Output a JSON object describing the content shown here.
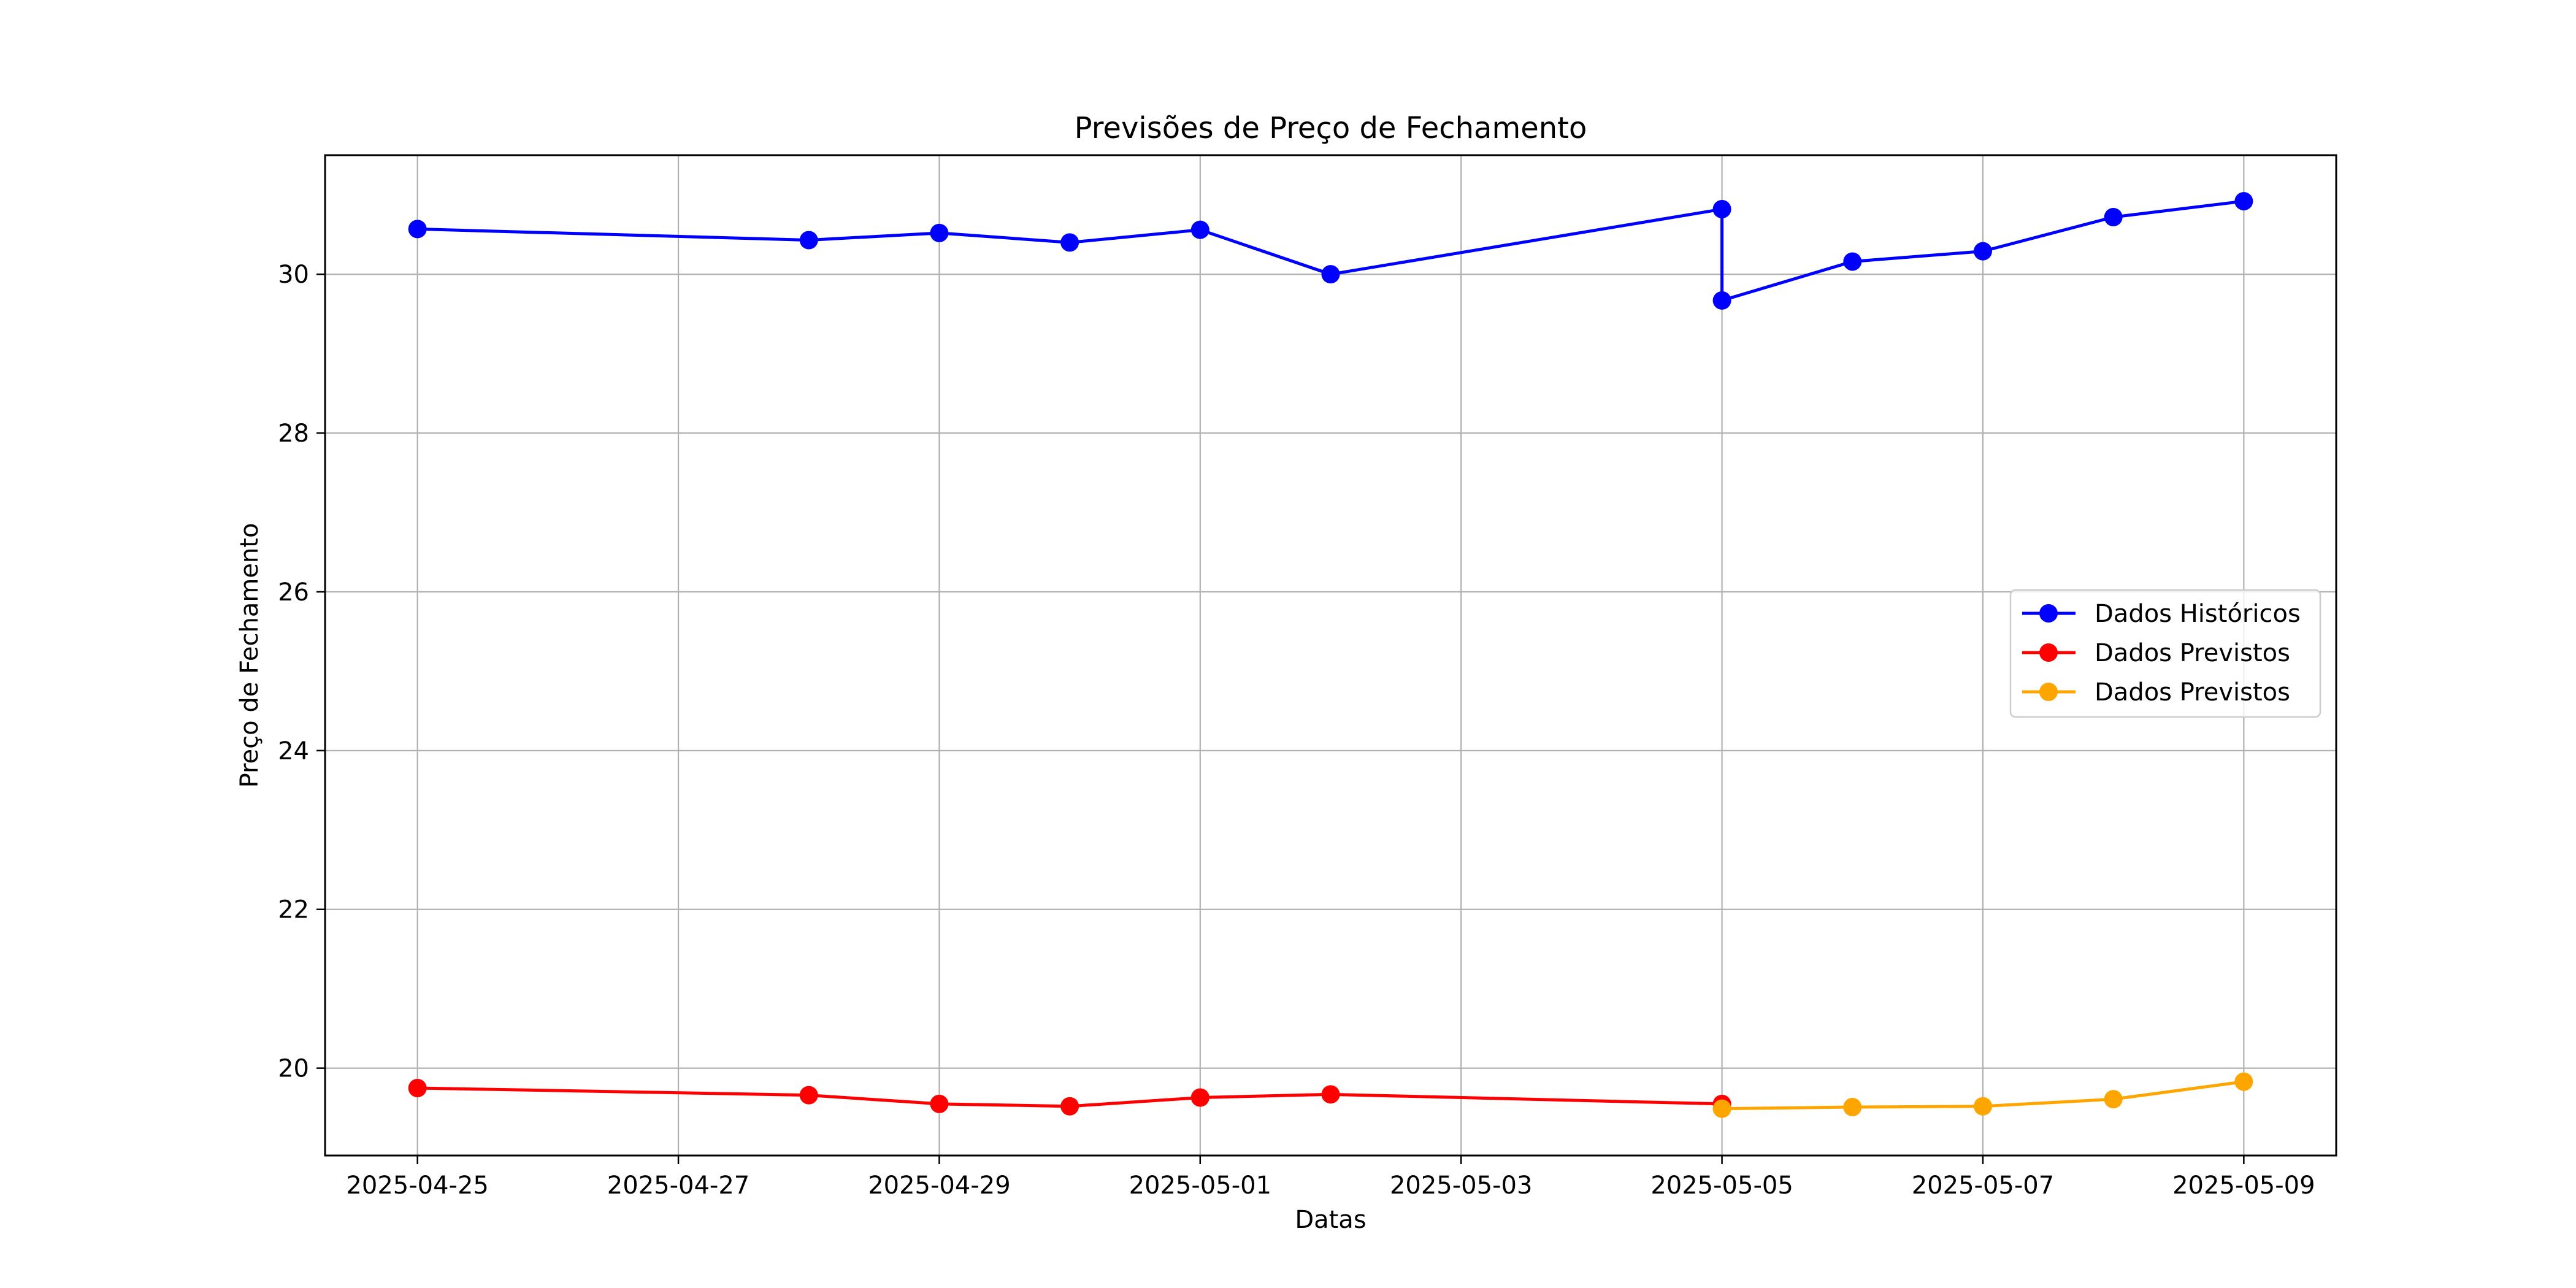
{
  "chart_data": {
    "type": "line",
    "title": "Previsões de Preço de Fechamento",
    "xlabel": "Datas",
    "ylabel": "Preço de Fechamento",
    "x_tick_labels": [
      "2025-04-25",
      "2025-04-27",
      "2025-04-29",
      "2025-05-01",
      "2025-05-03",
      "2025-05-05",
      "2025-05-07",
      "2025-05-09"
    ],
    "y_tick_labels": [
      "20",
      "22",
      "24",
      "26",
      "28",
      "30"
    ],
    "xlim": [
      "2025-04-24T07:00",
      "2025-05-09T17:00"
    ],
    "ylim": [
      18.9,
      31.5
    ],
    "grid": true,
    "legend_position": "center-right",
    "series": [
      {
        "name": "Dados Históricos",
        "color": "#0000ff",
        "x": [
          "2025-04-25",
          "2025-04-28",
          "2025-04-29",
          "2025-04-30",
          "2025-05-01",
          "2025-05-02",
          "2025-05-05",
          "2025-05-05",
          "2025-05-06",
          "2025-05-07",
          "2025-05-08",
          "2025-05-09"
        ],
        "y": [
          30.57,
          30.43,
          30.52,
          30.4,
          30.56,
          30.0,
          30.82,
          29.67,
          30.16,
          30.29,
          30.72,
          30.92
        ]
      },
      {
        "name": "Dados Previstos",
        "color": "#ff0000",
        "x": [
          "2025-04-25",
          "2025-04-28",
          "2025-04-29",
          "2025-04-30",
          "2025-05-01",
          "2025-05-02",
          "2025-05-05"
        ],
        "y": [
          19.75,
          19.66,
          19.55,
          19.52,
          19.63,
          19.67,
          19.55
        ]
      },
      {
        "name": "Dados Previstos",
        "color": "#ffa500",
        "x": [
          "2025-05-05",
          "2025-05-06",
          "2025-05-07",
          "2025-05-08",
          "2025-05-09"
        ],
        "y": [
          19.49,
          19.51,
          19.52,
          19.61,
          19.83
        ]
      }
    ]
  }
}
